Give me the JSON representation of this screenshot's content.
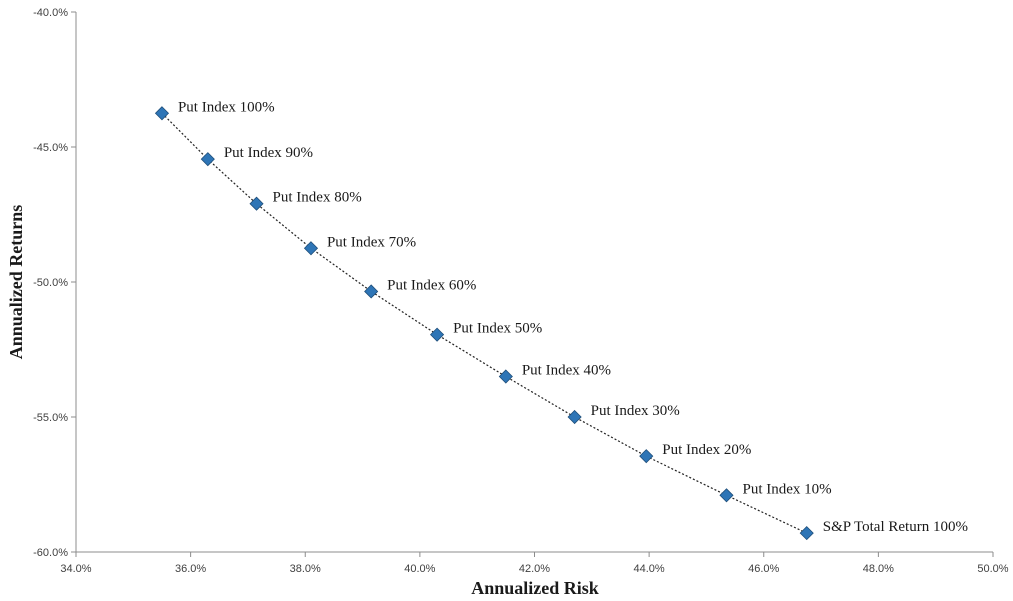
{
  "chart_data": {
    "type": "scatter",
    "title": "",
    "xlabel": "Annualized Risk",
    "ylabel": "Annualized Returns",
    "xlim": [
      0.34,
      0.5
    ],
    "ylim": [
      -0.6,
      -0.4
    ],
    "xticks": [
      0.34,
      0.36,
      0.38,
      0.4,
      0.42,
      0.44,
      0.46,
      0.48,
      0.5
    ],
    "yticks": [
      -0.6,
      -0.55,
      -0.5,
      -0.45,
      -0.4
    ],
    "xtick_labels": [
      "34.0%",
      "36.0%",
      "38.0%",
      "40.0%",
      "42.0%",
      "44.0%",
      "46.0%",
      "48.0%",
      "50.0%"
    ],
    "ytick_labels": [
      "-60.0%",
      "-55.0%",
      "-50.0%",
      "-45.0%",
      "-40.0%"
    ],
    "grid": false,
    "legend": "none",
    "trendline": "dotted",
    "marker": "diamond",
    "marker_color": "#2E75B6",
    "series": [
      {
        "points": [
          {
            "x": 0.355,
            "y": -0.4375,
            "label": "Put Index 100%"
          },
          {
            "x": 0.363,
            "y": -0.4545,
            "label": "Put Index 90%"
          },
          {
            "x": 0.3715,
            "y": -0.471,
            "label": "Put Index 80%"
          },
          {
            "x": 0.381,
            "y": -0.4875,
            "label": "Put Index 70%"
          },
          {
            "x": 0.3915,
            "y": -0.5035,
            "label": "Put Index 60%"
          },
          {
            "x": 0.403,
            "y": -0.5195,
            "label": "Put Index 50%"
          },
          {
            "x": 0.415,
            "y": -0.535,
            "label": "Put Index 40%"
          },
          {
            "x": 0.427,
            "y": -0.55,
            "label": "Put Index 30%"
          },
          {
            "x": 0.4395,
            "y": -0.5645,
            "label": "Put Index 20%"
          },
          {
            "x": 0.4535,
            "y": -0.579,
            "label": "Put Index 10%"
          },
          {
            "x": 0.4675,
            "y": -0.593,
            "label": "S&P Total Return 100%"
          }
        ]
      }
    ]
  }
}
